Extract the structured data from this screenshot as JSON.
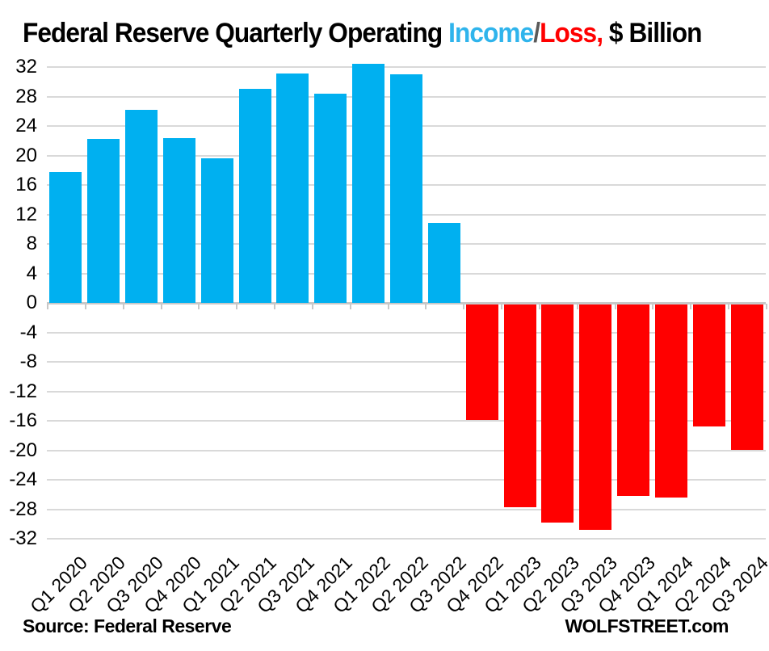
{
  "title": {
    "prefix": "Federal Reserve Quarterly Operating ",
    "income": "Income",
    "slash": "/",
    "loss": "Loss,",
    "suffix": " $ Billion"
  },
  "footer": {
    "source": "Source: Federal Reserve",
    "brand": "WOLFSTREET.com"
  },
  "colors": {
    "income_bar": "#00B0F0",
    "loss_bar": "#FF0000",
    "title_income": "#2FB4EC",
    "title_loss": "#FF0000",
    "title_slash": "#595959",
    "title_text": "#000000",
    "gridline": "#D9D9D9",
    "axis_line": "#C8C8C8",
    "label_text": "#000000"
  },
  "chart_data": {
    "type": "bar",
    "title": "Federal Reserve Quarterly Operating Income/Loss, $ Billion",
    "xlabel": "",
    "ylabel": "",
    "ylim": [
      -32,
      32
    ],
    "ytick_step": 4,
    "grid": true,
    "legend": "none",
    "categories": [
      "Q1 2020",
      "Q2 2020",
      "Q3 2020",
      "Q4 2020",
      "Q1 2021",
      "Q2 2021",
      "Q3 2021",
      "Q4 2021",
      "Q1 2022",
      "Q2 2022",
      "Q3 2022",
      "Q4 2022",
      "Q1 2023",
      "Q2 2023",
      "Q3 2023",
      "Q4 2023",
      "Q1 2024",
      "Q2 2024",
      "Q3 2024"
    ],
    "values": [
      17.7,
      22.2,
      26.2,
      22.4,
      19.6,
      29.0,
      31.1,
      28.4,
      32.4,
      31.0,
      10.9,
      -15.7,
      -27.5,
      -29.6,
      -30.6,
      -26.0,
      -26.2,
      -16.6,
      -19.7
    ],
    "series_note": "positive values = income (blue), negative values = loss (red)"
  }
}
